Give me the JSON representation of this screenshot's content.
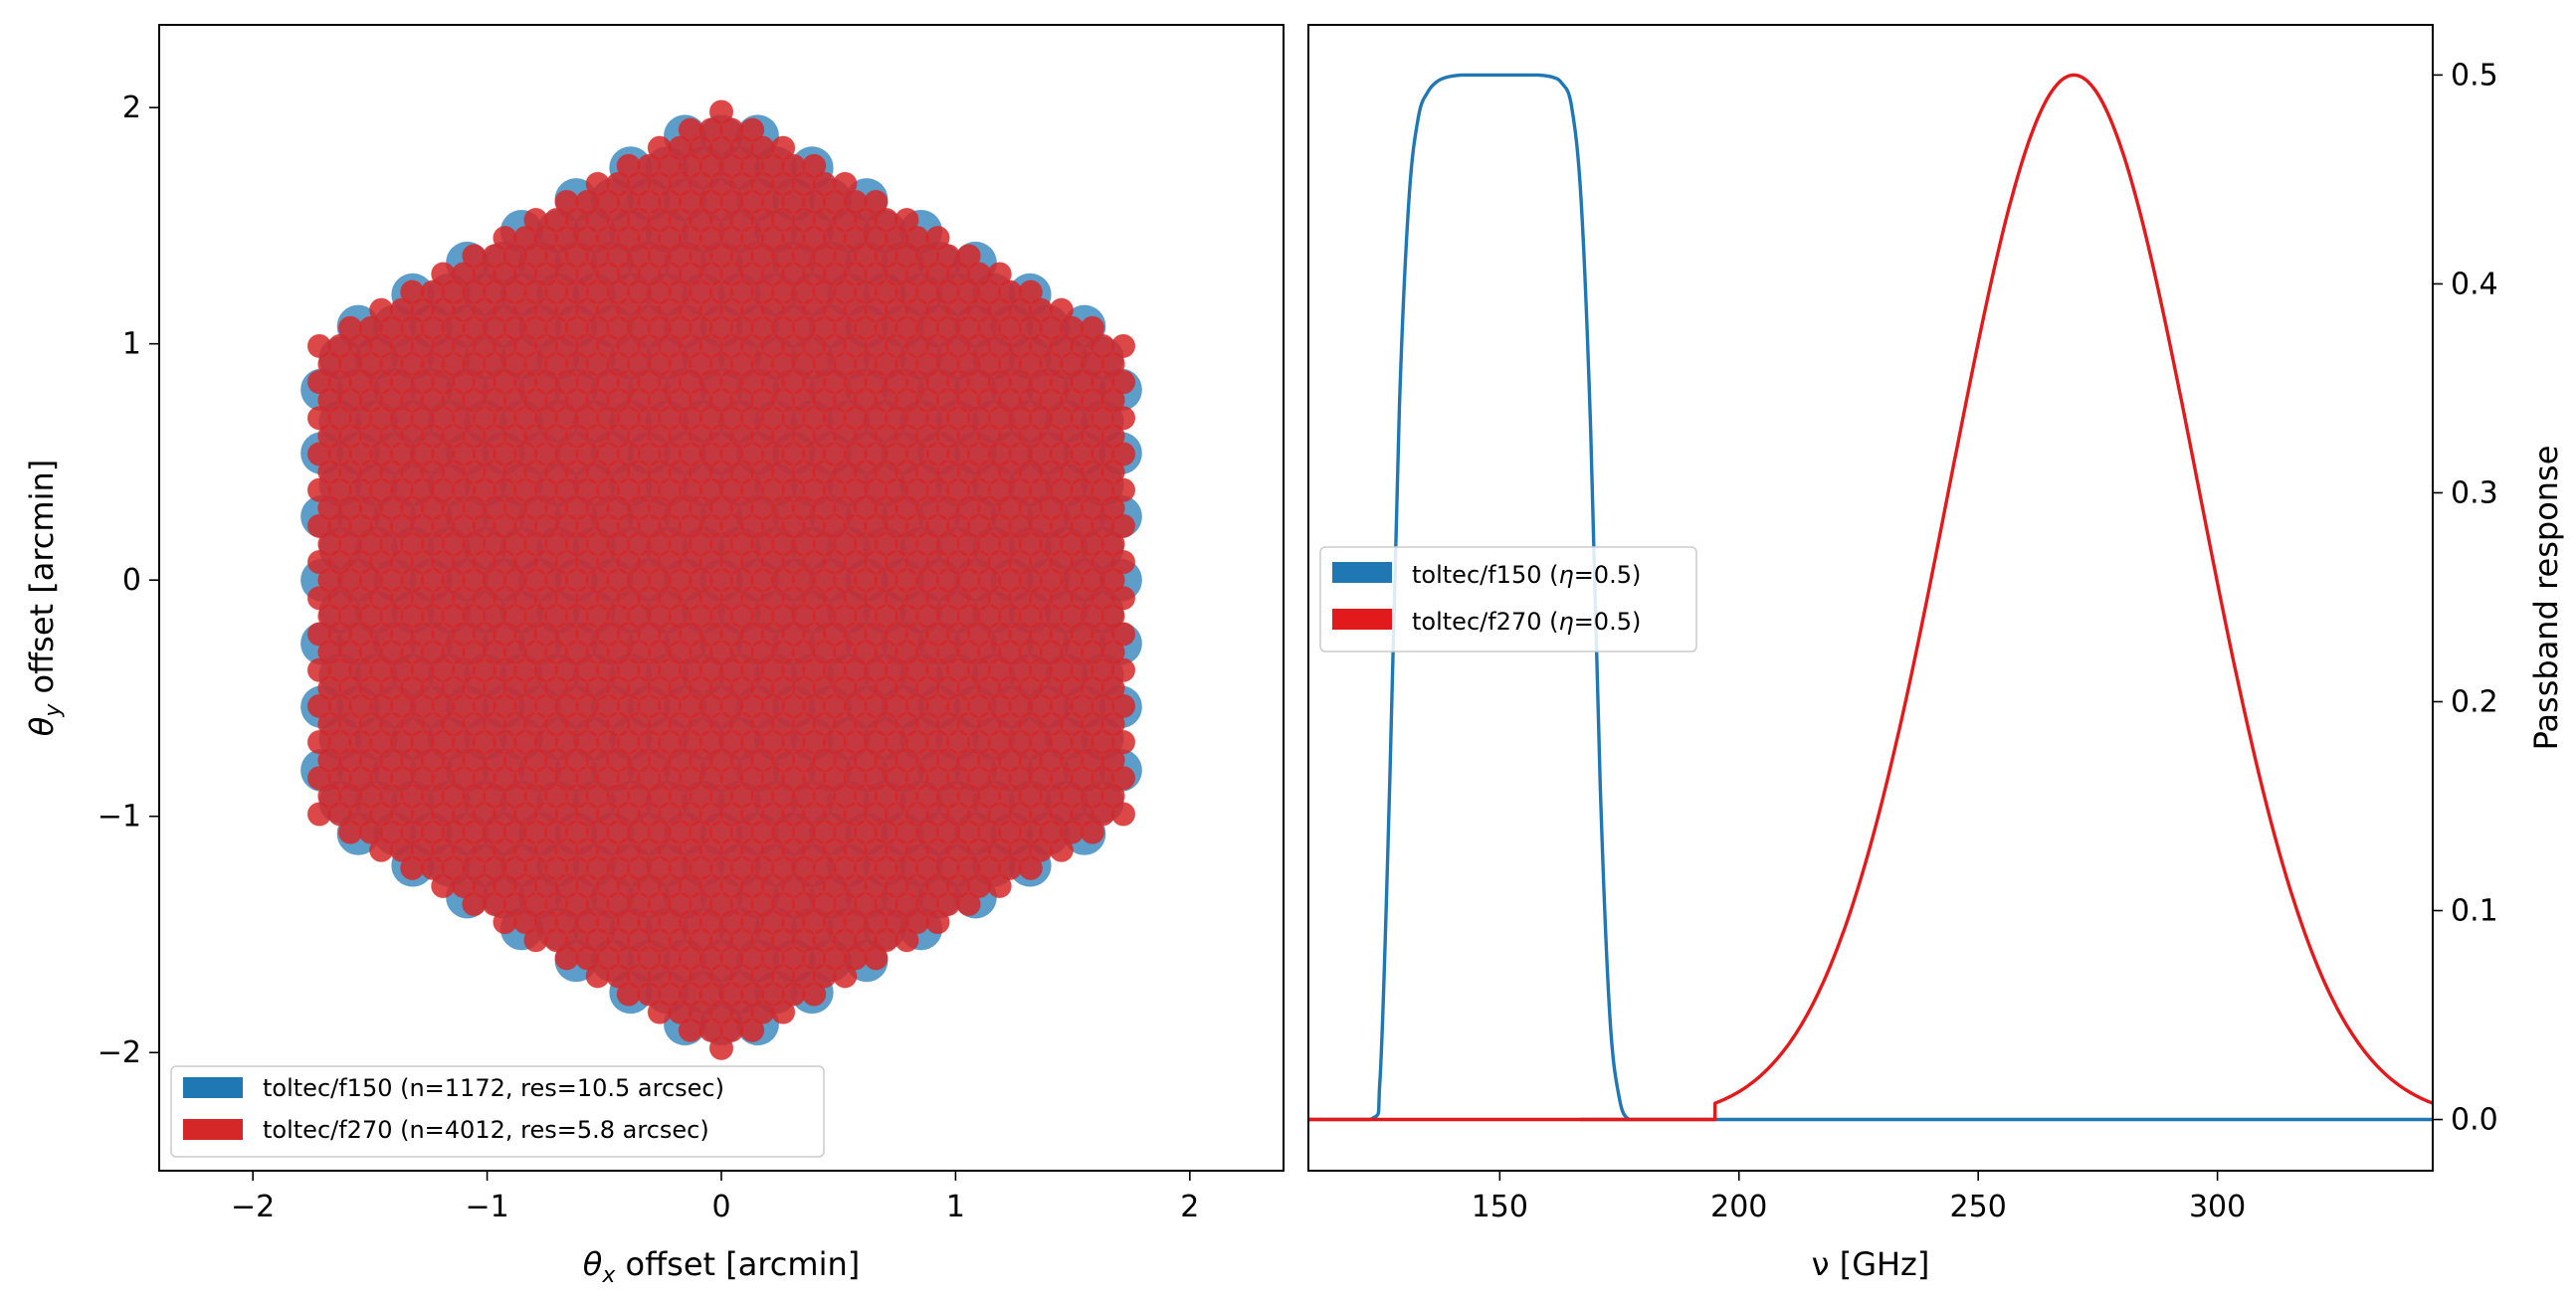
{
  "chart_data": [
    {
      "type": "scatter",
      "xlabel": {
        "theta": "θ",
        "sub": "x",
        "rest": " offset [arcmin]"
      },
      "ylabel": {
        "theta": "θ",
        "sub": "y",
        "rest": " offset [arcmin]"
      },
      "xlim": [
        -2.4,
        2.4
      ],
      "ylim": [
        -2.5,
        2.35
      ],
      "xticks": [
        {
          "v": -2,
          "label": "−2"
        },
        {
          "v": -1,
          "label": "−1"
        },
        {
          "v": 0,
          "label": "0"
        },
        {
          "v": 1,
          "label": "1"
        },
        {
          "v": 2,
          "label": "2"
        }
      ],
      "yticks": [
        {
          "v": -2,
          "label": "−2"
        },
        {
          "v": -1,
          "label": "−1"
        },
        {
          "v": 0,
          "label": "0"
        },
        {
          "v": 1,
          "label": "1"
        },
        {
          "v": 2,
          "label": "2"
        }
      ],
      "legend_position": "lower-left",
      "series": [
        {
          "name": "toltec/f150 (n=1172, res=10.5 arcsec)",
          "color": "#1f77b4",
          "alpha": 0.72,
          "array_shape": "hexagon",
          "circumradius_arcmin": 2.05,
          "corner_cut_arcmin": 0.15,
          "pitch_arcmin": 0.155,
          "marker_radius_arcmin": 0.09
        },
        {
          "name": "toltec/f270 (n=4012, res=5.8 arcsec)",
          "color": "#d62728",
          "alpha": 0.85,
          "array_shape": "hexagon",
          "circumradius_arcmin": 2.03,
          "pitch_arcmin": 0.088,
          "marker_radius_arcmin": 0.05
        }
      ]
    },
    {
      "type": "line",
      "xlabel": "ν [GHz]",
      "ylabel": "Passband response",
      "yaxis_position": "right",
      "xlim": [
        110,
        345
      ],
      "ylim": [
        -0.0245,
        0.524
      ],
      "xticks": [
        {
          "v": 150,
          "label": "150"
        },
        {
          "v": 200,
          "label": "200"
        },
        {
          "v": 250,
          "label": "250"
        },
        {
          "v": 300,
          "label": "300"
        }
      ],
      "yticks": [
        {
          "v": 0,
          "label": "0.0"
        },
        {
          "v": 0.1,
          "label": "0.1"
        },
        {
          "v": 0.2,
          "label": "0.2"
        },
        {
          "v": 0.3,
          "label": "0.3"
        },
        {
          "v": 0.4,
          "label": "0.4"
        },
        {
          "v": 0.5,
          "label": "0.5"
        }
      ],
      "legend_position": "center-left",
      "series": [
        {
          "name": "toltec/f150 (η=0.5)",
          "label_parts": [
            "toltec/f150 (",
            "η",
            "=0.5)"
          ],
          "color": "#1f77b4",
          "x": [
            110,
            123,
            125,
            127,
            129,
            131,
            133,
            135,
            137,
            139,
            142,
            145,
            150,
            155,
            158,
            161,
            163,
            165,
            167,
            169,
            171,
            173,
            175,
            177,
            180,
            345
          ],
          "y": [
            0,
            0,
            0.02,
            0.16,
            0.34,
            0.44,
            0.48,
            0.492,
            0.497,
            0.499,
            0.5,
            0.5,
            0.5,
            0.5,
            0.5,
            0.499,
            0.496,
            0.485,
            0.44,
            0.33,
            0.16,
            0.05,
            0.01,
            0,
            0,
            0
          ]
        },
        {
          "name": "toltec/f270 (η=0.5)",
          "label_parts": [
            "toltec/f270 (",
            "η",
            "=0.5)"
          ],
          "color": "#e31a1c",
          "gaussian": {
            "center_ghz": 270,
            "peak": 0.5,
            "sigma_ghz": 26,
            "start_ghz": 195,
            "end_ghz": 345
          }
        }
      ]
    }
  ]
}
